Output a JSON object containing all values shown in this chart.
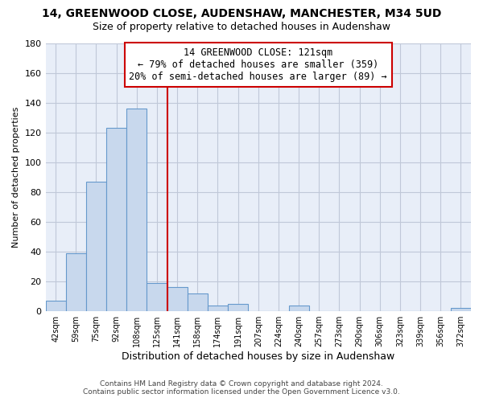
{
  "title": "14, GREENWOOD CLOSE, AUDENSHAW, MANCHESTER, M34 5UD",
  "subtitle": "Size of property relative to detached houses in Audenshaw",
  "xlabel": "Distribution of detached houses by size in Audenshaw",
  "ylabel": "Number of detached properties",
  "bar_labels": [
    "42sqm",
    "59sqm",
    "75sqm",
    "92sqm",
    "108sqm",
    "125sqm",
    "141sqm",
    "158sqm",
    "174sqm",
    "191sqm",
    "207sqm",
    "224sqm",
    "240sqm",
    "257sqm",
    "273sqm",
    "290sqm",
    "306sqm",
    "323sqm",
    "339sqm",
    "356sqm",
    "372sqm"
  ],
  "bar_values": [
    7,
    39,
    87,
    123,
    136,
    19,
    16,
    12,
    4,
    5,
    0,
    0,
    4,
    0,
    0,
    0,
    0,
    0,
    0,
    0,
    2
  ],
  "bar_color": "#c8d8ed",
  "bar_edge_color": "#6699cc",
  "highlight_line_color": "#cc0000",
  "ylim": [
    0,
    180
  ],
  "yticks": [
    0,
    20,
    40,
    60,
    80,
    100,
    120,
    140,
    160,
    180
  ],
  "annotation_title": "14 GREENWOOD CLOSE: 121sqm",
  "annotation_line1": "← 79% of detached houses are smaller (359)",
  "annotation_line2": "20% of semi-detached houses are larger (89) →",
  "annotation_box_color": "#ffffff",
  "annotation_box_edge": "#cc0000",
  "footer_line1": "Contains HM Land Registry data © Crown copyright and database right 2024.",
  "footer_line2": "Contains public sector information licensed under the Open Government Licence v3.0.",
  "plot_bg_color": "#e8eef8",
  "fig_bg_color": "#ffffff",
  "grid_color": "#c0c8d8"
}
